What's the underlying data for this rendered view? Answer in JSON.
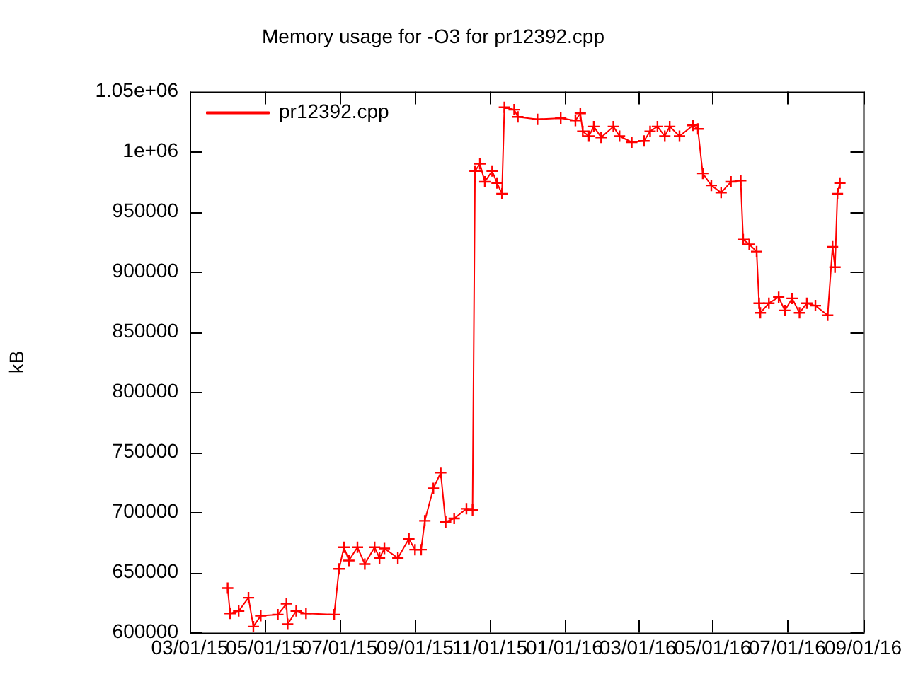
{
  "chart_data": {
    "type": "line",
    "title": "Memory usage for -O3 for pr12392.cpp",
    "ylabel": "kB",
    "x": [
      "2015-04-01",
      "2015-04-03",
      "2015-04-10",
      "2015-04-18",
      "2015-04-22",
      "2015-04-28",
      "2015-05-12",
      "2015-05-19",
      "2015-05-20",
      "2015-05-27",
      "2015-06-04",
      "2015-06-27",
      "2015-07-01",
      "2015-07-05",
      "2015-07-09",
      "2015-07-16",
      "2015-07-22",
      "2015-07-30",
      "2015-08-03",
      "2015-08-07",
      "2015-08-18",
      "2015-08-27",
      "2015-09-01",
      "2015-09-06",
      "2015-09-09",
      "2015-09-16",
      "2015-09-22",
      "2015-09-26",
      "2015-10-03",
      "2015-10-13",
      "2015-10-18",
      "2015-10-20",
      "2015-10-24",
      "2015-10-28",
      "2015-11-03",
      "2015-11-07",
      "2015-11-11",
      "2015-11-13",
      "2015-11-21",
      "2015-11-24",
      "2015-12-10",
      "2015-12-29",
      "2016-01-10",
      "2016-01-14",
      "2016-01-16",
      "2016-01-21",
      "2016-01-25",
      "2016-01-31",
      "2016-02-10",
      "2016-02-15",
      "2016-02-25",
      "2016-03-06",
      "2016-03-11",
      "2016-03-17",
      "2016-03-23",
      "2016-03-27",
      "2016-04-04",
      "2016-04-15",
      "2016-04-19",
      "2016-04-23",
      "2016-04-30",
      "2016-05-08",
      "2016-05-16",
      "2016-05-24",
      "2016-05-26",
      "2016-05-31",
      "2016-06-06",
      "2016-06-08",
      "2016-06-09",
      "2016-06-16",
      "2016-06-24",
      "2016-06-29",
      "2016-07-05",
      "2016-07-11",
      "2016-07-17",
      "2016-07-24",
      "2016-08-03",
      "2016-08-07",
      "2016-08-09",
      "2016-08-11",
      "2016-08-13"
    ],
    "series": [
      {
        "name": "pr12392.cpp",
        "color": "#ff0000",
        "values": [
          637000,
          616000,
          618000,
          629000,
          605000,
          614000,
          615000,
          624000,
          607000,
          618000,
          616000,
          615000,
          653000,
          671000,
          660000,
          671000,
          657000,
          671000,
          662000,
          670000,
          662000,
          678000,
          669000,
          669000,
          693000,
          720000,
          733000,
          692000,
          695000,
          703000,
          702000,
          984000,
          990000,
          975000,
          984000,
          974000,
          965000,
          1037000,
          1035000,
          1029000,
          1027000,
          1028000,
          1026000,
          1032000,
          1017000,
          1013000,
          1021000,
          1012000,
          1021000,
          1013000,
          1008000,
          1009000,
          1017000,
          1021000,
          1013000,
          1021000,
          1013000,
          1022000,
          1019000,
          982000,
          972000,
          966000,
          975000,
          976000,
          927000,
          923000,
          917000,
          874000,
          866000,
          874000,
          879000,
          868000,
          878000,
          866000,
          874000,
          872000,
          864000,
          921000,
          904000,
          965000,
          974000
        ]
      }
    ],
    "xlim": [
      "2015-03-01",
      "2016-09-01"
    ],
    "xticks": [
      {
        "value": "2015-03-01",
        "label": "03/01/15"
      },
      {
        "value": "2015-05-01",
        "label": "05/01/15"
      },
      {
        "value": "2015-07-01",
        "label": "07/01/15"
      },
      {
        "value": "2015-09-01",
        "label": "09/01/15"
      },
      {
        "value": "2015-11-01",
        "label": "11/01/15"
      },
      {
        "value": "2016-01-01",
        "label": "01/01/16"
      },
      {
        "value": "2016-03-01",
        "label": "03/01/16"
      },
      {
        "value": "2016-05-01",
        "label": "05/01/16"
      },
      {
        "value": "2016-07-01",
        "label": "07/01/16"
      },
      {
        "value": "2016-09-01",
        "label": "09/01/16"
      }
    ],
    "ylim": [
      600000,
      1050000
    ],
    "yticks": [
      600000,
      650000,
      700000,
      750000,
      800000,
      850000,
      900000,
      950000,
      {
        "value": 1000000,
        "label": "1e+06"
      },
      {
        "value": 1050000,
        "label": "1.05e+06"
      }
    ],
    "grid": false,
    "legend": "top left",
    "marker": "cross",
    "line_style": "solid"
  }
}
